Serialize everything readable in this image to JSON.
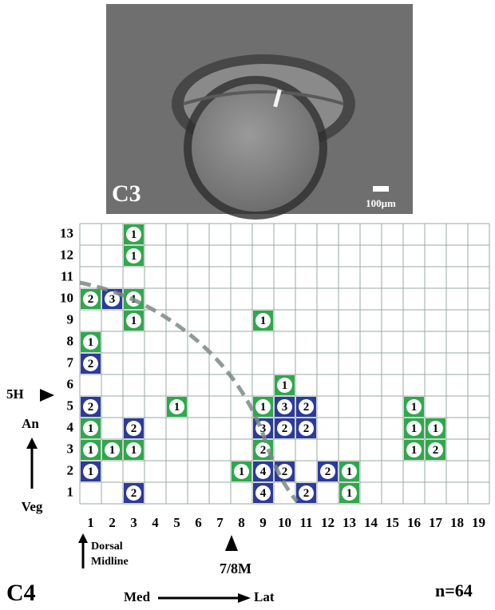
{
  "panel_c3": {
    "label": "C3",
    "scale_bar": "100μm"
  },
  "grid": {
    "columns": [
      1,
      2,
      3,
      4,
      5,
      6,
      7,
      8,
      9,
      10,
      11,
      12,
      13,
      14,
      15,
      16,
      17,
      18,
      19
    ],
    "rows": [
      1,
      2,
      3,
      4,
      5,
      6,
      7,
      8,
      9,
      10,
      11,
      12,
      13
    ],
    "colors": {
      "green": "#2fa84c",
      "blue": "#2c3a9c"
    },
    "cells": [
      {
        "col": 3,
        "row": 13,
        "color": "green",
        "count": 1
      },
      {
        "col": 3,
        "row": 12,
        "color": "green",
        "count": 1
      },
      {
        "col": 1,
        "row": 10,
        "color": "green",
        "count": 2
      },
      {
        "col": 2,
        "row": 10,
        "color": "blue",
        "count": 3
      },
      {
        "col": 3,
        "row": 10,
        "color": "green",
        "count": 1
      },
      {
        "col": 3,
        "row": 9,
        "color": "green",
        "count": 1
      },
      {
        "col": 9,
        "row": 9,
        "color": "green",
        "count": 1
      },
      {
        "col": 1,
        "row": 8,
        "color": "green",
        "count": 1
      },
      {
        "col": 1,
        "row": 7,
        "color": "blue",
        "count": 2
      },
      {
        "col": 10,
        "row": 6,
        "color": "green",
        "count": 1
      },
      {
        "col": 1,
        "row": 5,
        "color": "blue",
        "count": 2
      },
      {
        "col": 5,
        "row": 5,
        "color": "green",
        "count": 1
      },
      {
        "col": 9,
        "row": 5,
        "color": "green",
        "count": 1
      },
      {
        "col": 10,
        "row": 5,
        "color": "blue",
        "count": 3
      },
      {
        "col": 11,
        "row": 5,
        "color": "blue",
        "count": 2
      },
      {
        "col": 16,
        "row": 5,
        "color": "green",
        "count": 1
      },
      {
        "col": 1,
        "row": 4,
        "color": "green",
        "count": 1
      },
      {
        "col": 3,
        "row": 4,
        "color": "blue",
        "count": 2
      },
      {
        "col": 9,
        "row": 4,
        "color": "blue",
        "count": 3
      },
      {
        "col": 10,
        "row": 4,
        "color": "blue",
        "count": 2
      },
      {
        "col": 11,
        "row": 4,
        "color": "blue",
        "count": 2
      },
      {
        "col": 16,
        "row": 4,
        "color": "green",
        "count": 1
      },
      {
        "col": 17,
        "row": 4,
        "color": "green",
        "count": 1
      },
      {
        "col": 1,
        "row": 3,
        "color": "green",
        "count": 1
      },
      {
        "col": 2,
        "row": 3,
        "color": "green",
        "count": 1
      },
      {
        "col": 3,
        "row": 3,
        "color": "green",
        "count": 1
      },
      {
        "col": 9,
        "row": 3,
        "color": "green",
        "count": 2
      },
      {
        "col": 16,
        "row": 3,
        "color": "green",
        "count": 1
      },
      {
        "col": 17,
        "row": 3,
        "color": "green",
        "count": 2
      },
      {
        "col": 1,
        "row": 2,
        "color": "blue",
        "count": 1
      },
      {
        "col": 8,
        "row": 2,
        "color": "green",
        "count": 1
      },
      {
        "col": 9,
        "row": 2,
        "color": "blue",
        "count": 4
      },
      {
        "col": 10,
        "row": 2,
        "color": "blue",
        "count": 2
      },
      {
        "col": 12,
        "row": 2,
        "color": "blue",
        "count": 2
      },
      {
        "col": 13,
        "row": 2,
        "color": "green",
        "count": 1
      },
      {
        "col": 3,
        "row": 1,
        "color": "blue",
        "count": 2
      },
      {
        "col": 9,
        "row": 1,
        "color": "blue",
        "count": 4
      },
      {
        "col": 11,
        "row": 1,
        "color": "blue",
        "count": 2
      },
      {
        "col": 13,
        "row": 1,
        "color": "green",
        "count": 1
      }
    ]
  },
  "annotations": {
    "five_h": "5H",
    "an": "An",
    "veg": "Veg",
    "dorsal_midline": [
      "Dorsal",
      "Midline"
    ],
    "seven_eight_m": "7/8M",
    "panel_label": "C4",
    "med": "Med",
    "lat": "Lat",
    "n": "n=64"
  }
}
